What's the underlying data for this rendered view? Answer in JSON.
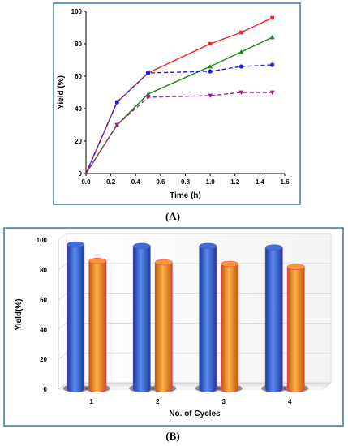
{
  "colors": {
    "panel_border": "#3a73b8",
    "series_1": "#ff2222",
    "series_2": "#1a8a1a",
    "series_3": "#1a22dd",
    "series_4": "#a0208a",
    "bar_blue": "#2f5fd0",
    "bar_orange": "#f08a18"
  },
  "panels": {
    "a": {
      "label": "(A)"
    },
    "b": {
      "label": "(B)"
    }
  },
  "chart_data": [
    {
      "type": "line",
      "xlabel": "Time (h)",
      "ylabel": "Yield (%)",
      "xlim": [
        0.0,
        1.6
      ],
      "ylim": [
        0,
        100
      ],
      "xticks": [
        "0.0",
        "0.2",
        "0.4",
        "0.6",
        "0.8",
        "1.0",
        "1.2",
        "1.4",
        "1.6"
      ],
      "yticks": [
        "0",
        "20",
        "40",
        "60",
        "80",
        "100"
      ],
      "grid": false,
      "series": [
        {
          "marker": "square",
          "style": "solid",
          "color": "#ff2222",
          "x": [
            0,
            0.25,
            0.5,
            1.0,
            1.25,
            1.5
          ],
          "y": [
            0,
            44,
            62,
            80,
            87,
            96
          ]
        },
        {
          "marker": "triangle-up",
          "style": "solid",
          "color": "#1a8a1a",
          "x": [
            0,
            0.25,
            0.5,
            1.0,
            1.25,
            1.5
          ],
          "y": [
            0,
            30,
            49,
            66,
            75,
            84
          ]
        },
        {
          "marker": "circle",
          "style": "dashed",
          "color": "#1a22dd",
          "x": [
            0,
            0.25,
            0.5,
            1.0,
            1.25,
            1.5
          ],
          "y": [
            0,
            44,
            62,
            63,
            66,
            67
          ]
        },
        {
          "marker": "triangle-down",
          "style": "dashed",
          "color": "#a0208a",
          "x": [
            0,
            0.25,
            0.5,
            1.0,
            1.25,
            1.5
          ],
          "y": [
            0,
            30,
            47,
            48,
            50,
            50
          ]
        }
      ]
    },
    {
      "type": "bar",
      "xlabel": "No. of Cycles",
      "ylabel": "Yield(%)",
      "ylim": [
        0,
        100
      ],
      "yticks": [
        "0",
        "20",
        "40",
        "60",
        "80",
        "100"
      ],
      "grid": true,
      "categories": [
        "1",
        "2",
        "3",
        "4"
      ],
      "series": [
        {
          "color": "#2f5fd0",
          "values": [
            97,
            96,
            96,
            95
          ]
        },
        {
          "color": "#f08a18",
          "values": [
            86,
            85,
            84,
            82
          ]
        }
      ]
    }
  ]
}
